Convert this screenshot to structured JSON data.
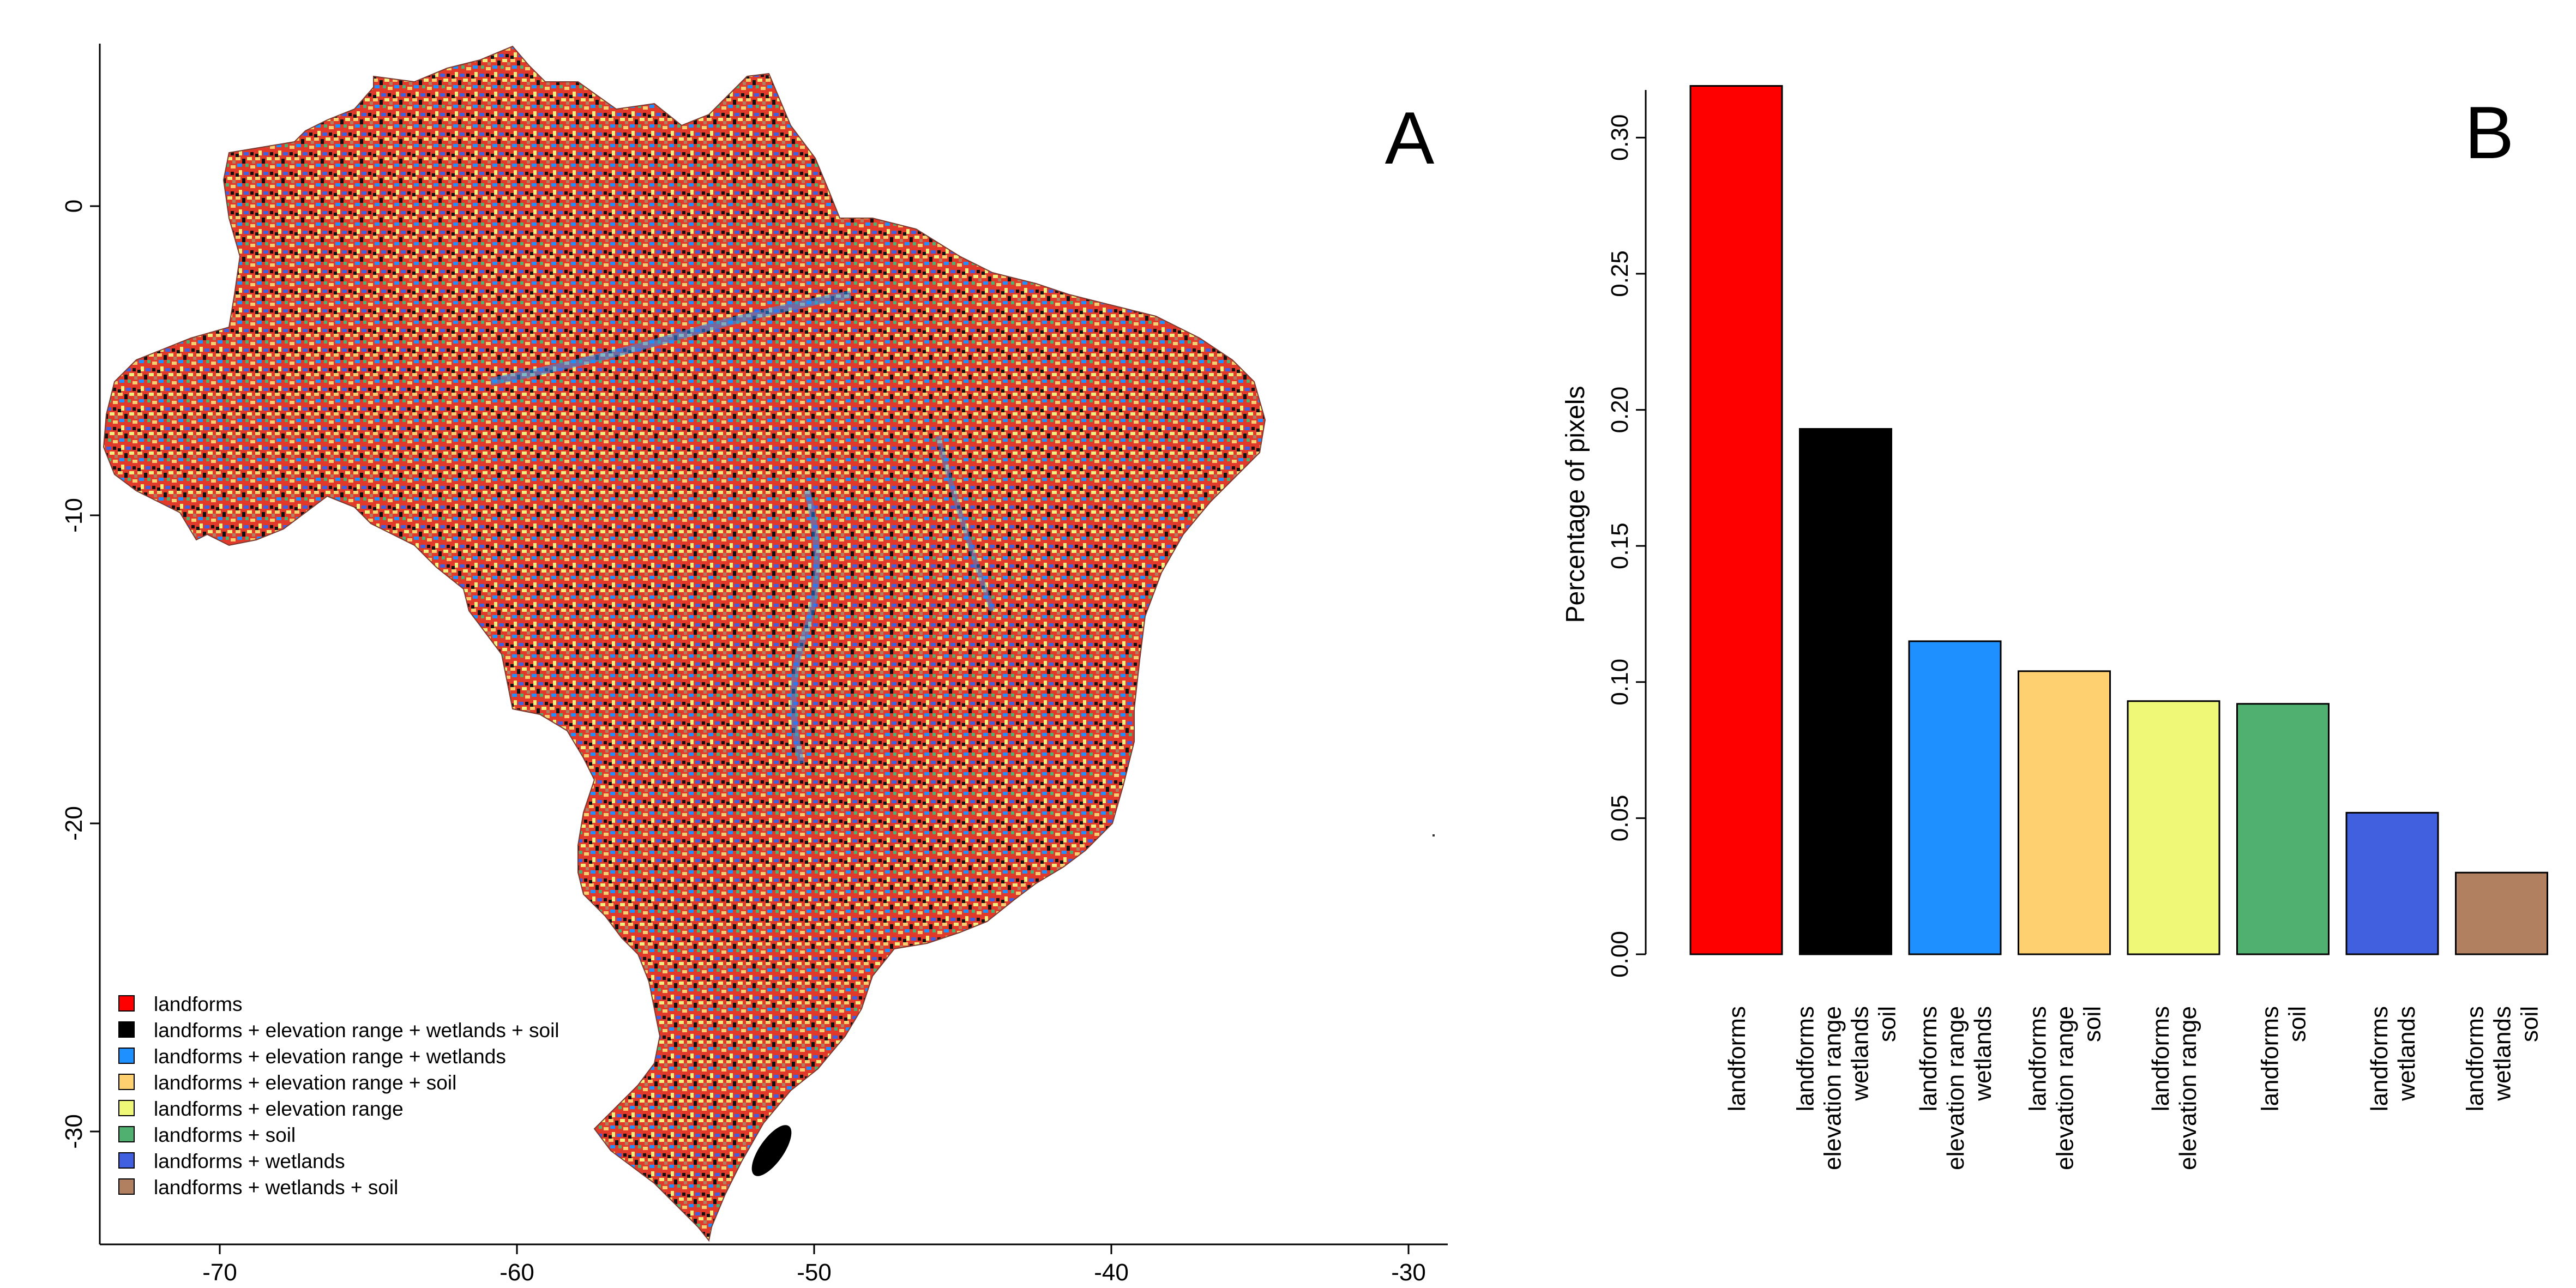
{
  "panels": {
    "map_label": "A",
    "bar_label": "B"
  },
  "map": {
    "x_ticks": [
      "-70",
      "-60",
      "-50",
      "-40",
      "-30"
    ],
    "y_ticks": [
      "0",
      "-10",
      "-20",
      "-30"
    ],
    "legend": [
      {
        "label": "landforms",
        "color": "#ff0000"
      },
      {
        "label": "landforms + elevation range + wetlands + soil",
        "color": "#000000"
      },
      {
        "label": "landforms + elevation range + wetlands",
        "color": "#1e90ff"
      },
      {
        "label": "landforms + elevation range + soil",
        "color": "#ffd070"
      },
      {
        "label": "landforms + elevation range",
        "color": "#f0f878"
      },
      {
        "label": "landforms + soil",
        "color": "#50b070"
      },
      {
        "label": "landforms + wetlands",
        "color": "#4060e0"
      },
      {
        "label": "landforms + wetlands + soil",
        "color": "#b08060"
      }
    ]
  },
  "chart_data": {
    "type": "bar",
    "ylabel": "Percentage of pixels",
    "ylim": [
      0,
      0.32
    ],
    "y_ticks": [
      "0.00",
      "0.05",
      "0.10",
      "0.15",
      "0.20",
      "0.25",
      "0.30"
    ],
    "categories": [
      [
        "landforms"
      ],
      [
        "landforms",
        "elevation range",
        "wetlands",
        "soil"
      ],
      [
        "landforms",
        "elevation range",
        "wetlands"
      ],
      [
        "landforms",
        "elevation range",
        "soil"
      ],
      [
        "landforms",
        "elevation range"
      ],
      [
        "landforms",
        "soil"
      ],
      [
        "landforms",
        "wetlands"
      ],
      [
        "landforms",
        "wetlands",
        "soil"
      ]
    ],
    "values": [
      0.319,
      0.193,
      0.115,
      0.104,
      0.093,
      0.092,
      0.052,
      0.03
    ],
    "colors": [
      "#ff0000",
      "#000000",
      "#1e90ff",
      "#ffd070",
      "#f0f878",
      "#50b070",
      "#4060e0",
      "#b08060"
    ]
  }
}
